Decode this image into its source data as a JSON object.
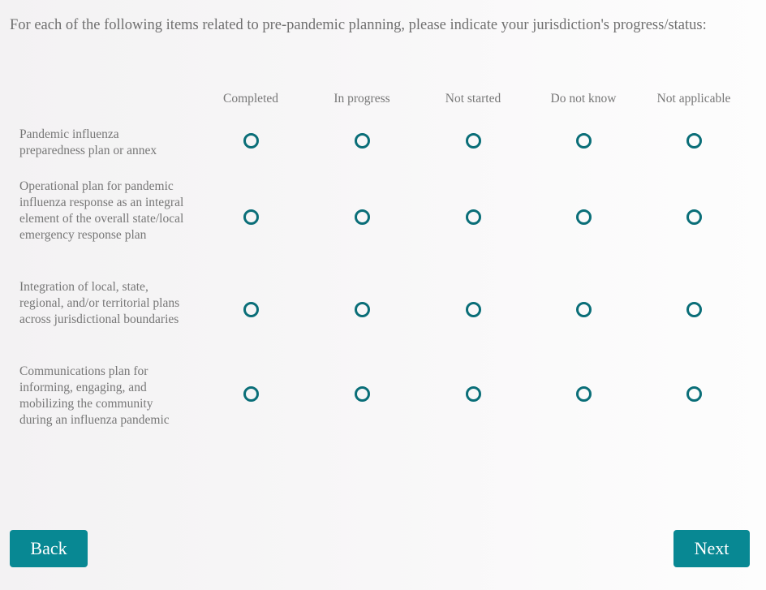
{
  "question": "For each of the following items related to pre-pandemic planning, please indicate your jurisdiction's progress/status:",
  "columns": [
    "Completed",
    "In progress",
    "Not started",
    "Do not know",
    "Not applicable"
  ],
  "rows": [
    "Pandemic influenza preparedness plan or annex",
    "Operational plan for pandemic influenza response as an integral element of the overall state/local emergency response plan",
    "Integration of local, state, regional, and/or territorial plans across jurisdictional boundaries",
    "Communications plan for informing, engaging, and mobilizing the community during an influenza pandemic"
  ],
  "selected": [
    null,
    null,
    null,
    null
  ],
  "buttons": {
    "back": "Back",
    "next": "Next"
  },
  "colors": {
    "accent": "#088893",
    "radio": "#0a6e78"
  }
}
